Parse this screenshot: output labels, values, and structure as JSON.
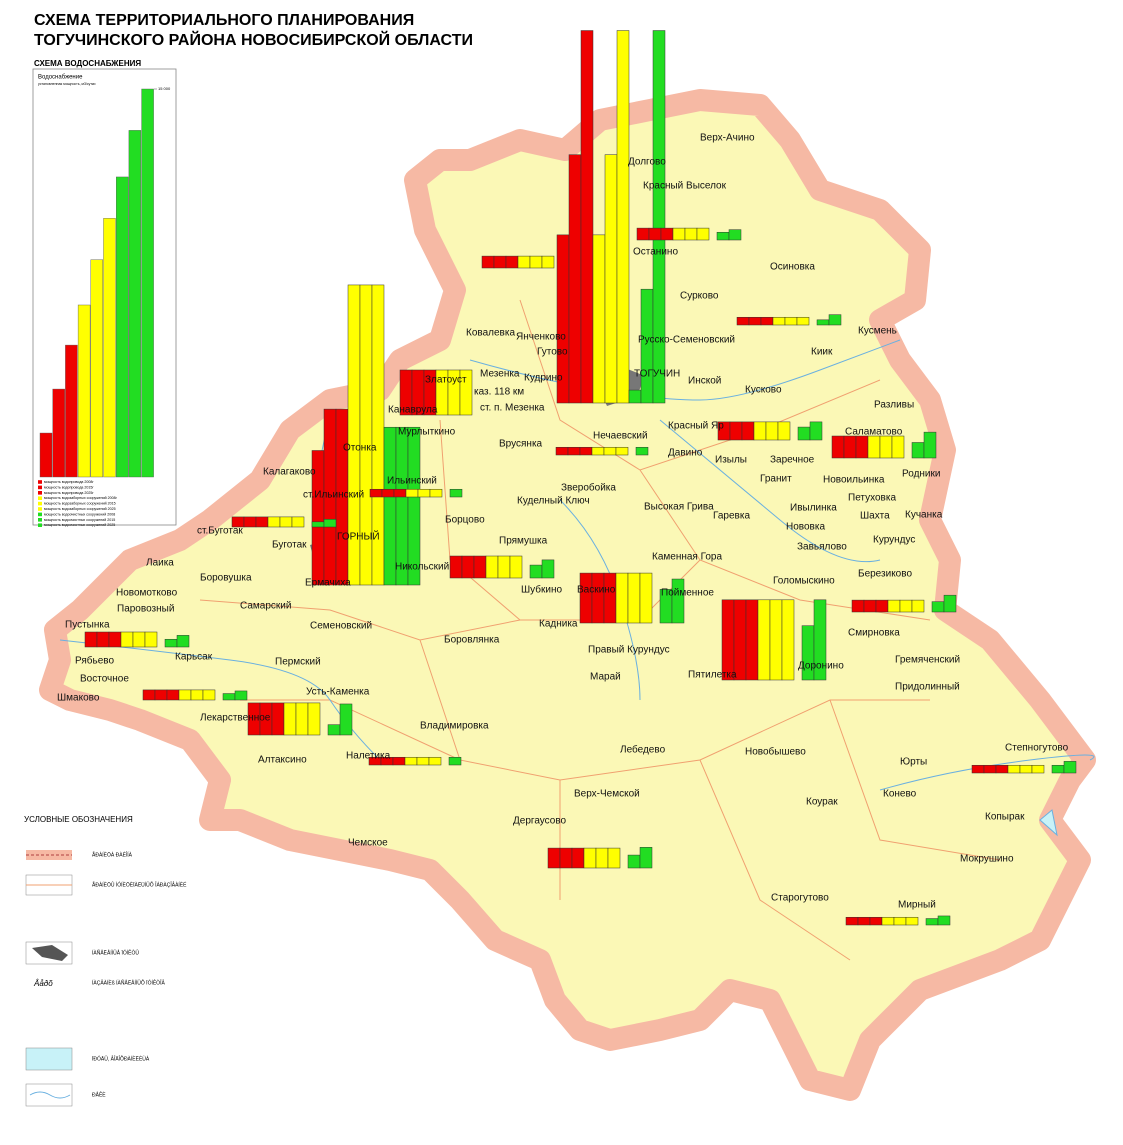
{
  "header": {
    "title_line1": "СХЕМА ТЕРРИТОРИАЛЬНОГО ПЛАНИРОВАНИЯ",
    "title_line2": "ТОГУЧИНСКОГО РАЙОНА НОВОСИБИРСКОЙ ОБЛАСТИ",
    "section": "СХЕМА ВОДОСНАБЖЕНИЯ"
  },
  "chart_data": {
    "type": "bar",
    "title": "Водоснабжение",
    "subtitle": "установленная мощность, м3/сутки",
    "categories": [
      "мощность водопровода 2008г",
      "мощность водопровода 2015г",
      "мощность водопровода 2025г",
      "мощность водозаборных сооружений 2008г",
      "мощность водозаборных сооружений 2015",
      "мощность водозаборных сооружений 2025",
      "мощность водоочистных сооружений 2008",
      "мощность водоочистных сооружений 2015",
      "мощность водоочистных сооружений 2025"
    ],
    "values": [
      1700,
      3400,
      5100,
      6650,
      8400,
      10000,
      11600,
      13400,
      15000
    ],
    "colors": [
      "#ee0000",
      "#ee0000",
      "#ee0000",
      "#ffff00",
      "#ffff00",
      "#ffff00",
      "#22dd22",
      "#22dd22",
      "#22dd22"
    ],
    "ylim": [
      0,
      15000
    ],
    "yticks": [
      {
        "value": 15000,
        "label": "15 000"
      }
    ]
  },
  "legend": {
    "title": "УСЛОВНЫЕ ОБОЗНАЧЕНИЯ",
    "items": [
      "ÃÐÀÍÈÖÀ ÐÀÉÎÍÀ",
      "ÃÐÀÍÈÖÛ ÌÓÍÈÖÈÏÀËÜÍÛÕ ÎÁÐÀÇÎÂÀÍÈÉ",
      "ÍÀÑÅËÅÍÍÛÅ ÏÓÍÊÒÛ",
      "Âåðõ",
      "ÍÀÇÂÀÍÈß ÍÀÑÅËÅÍÍÛÕ ÏÓÍÊÒÎÂ",
      "ÏÐÓÄÛ, ÂÎÄÎÕÐÀÍÈËÈÙÀ",
      "ÐÅÊÈ"
    ]
  },
  "map": {
    "settlements": [
      "Верх-Ачино",
      "Долгово",
      "Красный Выселок",
      "Останино",
      "Осиновка",
      "Сурково",
      "Кусмень",
      "Русско-Семеновский",
      "Ковалевка",
      "Янченково",
      "Гутово",
      "Киик",
      "Мезенка",
      "Кудрино",
      "ТОГУЧИН",
      "Инской",
      "Златоуст",
      "Кусково",
      "каз. 118 км",
      "Канаврула",
      "ст. п. Мезенка",
      "Разливы",
      "Мурлыткино",
      "Нечаевский",
      "Красный Яр",
      "Врусянка",
      "Саламатово",
      "Отонка",
      "Изылы",
      "Давино",
      "Заречное",
      "Родники",
      "Калагаково",
      "Ильинский",
      "Зверобойка",
      "Новоильинка",
      "Петуховка",
      "ст.Ильинский",
      "Куделный Ключ",
      "Гранит",
      "Высокая Грива",
      "Ивылинка",
      "Шахта",
      "Борцово",
      "Гаревка",
      "Кучанка",
      "ст.Буготак",
      "Нововка",
      "Прямушка",
      "Буготак",
      "ГОРНЫЙ",
      "Курундус",
      "Завьялово",
      "Каменная Гора",
      "Лаика",
      "Никольский",
      "Шубкино",
      "Боровушка",
      "Березиково",
      "Новомотково",
      "Ермачиха",
      "Васкино",
      "Голомыскино",
      "Пойменное",
      "Самарский",
      "Паровозный",
      "Пустынка",
      "Семеновский",
      "Кадника",
      "Смирновка",
      "Рябьево",
      "Карьсак",
      "Пермский",
      "Боровлянка",
      "Правый Курундус",
      "Доронино",
      "Пятилетка",
      "Гремяченский",
      "Восточное",
      "Марай",
      "Придолинный",
      "Шмаково",
      "Усть-Каменка",
      "Лекарственное",
      "Владимировка",
      "Лебедево",
      "Налетика",
      "Алтаксино",
      "Новобышево",
      "Степногутово",
      "Юрты",
      "Верх-Чемской",
      "Коурак",
      "Конево",
      "Дергаусово",
      "Копырак",
      "Чемское",
      "Мокрушино",
      "Старогутово",
      "Мирный"
    ],
    "colors": {
      "red": "#ee0000",
      "yellow": "#ffff00",
      "green": "#22dd22"
    },
    "water_groups": [
      {
        "red": [
          6500,
          9600,
          14400
        ],
        "yellow": [
          6500,
          9600,
          14400
        ],
        "green": [
          500,
          4400,
          14400
        ]
      },
      {
        "red": [
          5200,
          6800,
          6800
        ],
        "yellow": [
          11600,
          11600,
          11600
        ],
        "green": [
          6100,
          6100,
          6100
        ]
      },
      {
        "red": [
          460,
          460,
          460
        ],
        "yellow": [
          460,
          460,
          460
        ],
        "green": []
      },
      {
        "red": [
          460,
          460,
          460
        ],
        "yellow": [
          460,
          460,
          460
        ],
        "green": [
          300,
          400
        ]
      },
      {
        "red": [
          300,
          300,
          300
        ],
        "yellow": [
          300,
          300,
          300
        ],
        "green": [
          200,
          400
        ]
      },
      {
        "red": [
          1740,
          1740,
          1740
        ],
        "yellow": [
          1740,
          1740,
          1740
        ],
        "green": []
      },
      {
        "red": [
          300,
          300,
          300
        ],
        "yellow": [
          300,
          300,
          300
        ],
        "green": [
          300
        ]
      },
      {
        "red": [
          700,
          700,
          700
        ],
        "yellow": [
          700,
          700,
          700
        ],
        "green": [
          500,
          700
        ]
      },
      {
        "red": [
          850,
          850,
          850
        ],
        "yellow": [
          850,
          850,
          850
        ],
        "green": [
          600,
          1000
        ]
      },
      {
        "red": [
          300,
          300,
          300
        ],
        "yellow": [
          300,
          300,
          300
        ],
        "green": [
          300
        ]
      },
      {
        "red": [
          390,
          390,
          390
        ],
        "yellow": [
          390,
          390,
          390
        ],
        "green": [
          200,
          300
        ]
      },
      {
        "red": [
          850,
          850,
          850
        ],
        "yellow": [
          850,
          850,
          850
        ],
        "green": [
          500,
          700
        ]
      },
      {
        "red": [
          1930,
          1930,
          1930
        ],
        "yellow": [
          1930,
          1930,
          1930
        ],
        "green": [
          1300,
          1700
        ]
      },
      {
        "red": [
          3100,
          3100,
          3100
        ],
        "yellow": [
          3100,
          3100,
          3100
        ],
        "green": [
          2100,
          3100
        ]
      },
      {
        "red": [
          460,
          460,
          460
        ],
        "yellow": [
          460,
          460,
          460
        ],
        "green": [
          400,
          650
        ]
      },
      {
        "red": [
          580,
          580,
          580
        ],
        "yellow": [
          580,
          580,
          580
        ],
        "green": [
          300,
          450
        ]
      },
      {
        "red": [
          390,
          390,
          390
        ],
        "yellow": [
          390,
          390,
          390
        ],
        "green": [
          250,
          350
        ]
      },
      {
        "red": [
          1240,
          1240,
          1240
        ],
        "yellow": [
          1240,
          1240,
          1240
        ],
        "green": [
          400,
          1200
        ]
      },
      {
        "red": [
          300,
          300,
          300
        ],
        "yellow": [
          300,
          300,
          300
        ],
        "green": [
          300
        ]
      },
      {
        "red": [
          770,
          770,
          770
        ],
        "yellow": [
          770,
          770,
          770
        ],
        "green": [
          500,
          800
        ]
      },
      {
        "red": [
          300,
          300,
          300
        ],
        "yellow": [
          300,
          300,
          300
        ],
        "green": [
          300,
          450
        ]
      },
      {
        "red": [
          300,
          300,
          300
        ],
        "yellow": [
          300,
          300,
          300
        ],
        "green": [
          250,
          350
        ]
      }
    ]
  }
}
